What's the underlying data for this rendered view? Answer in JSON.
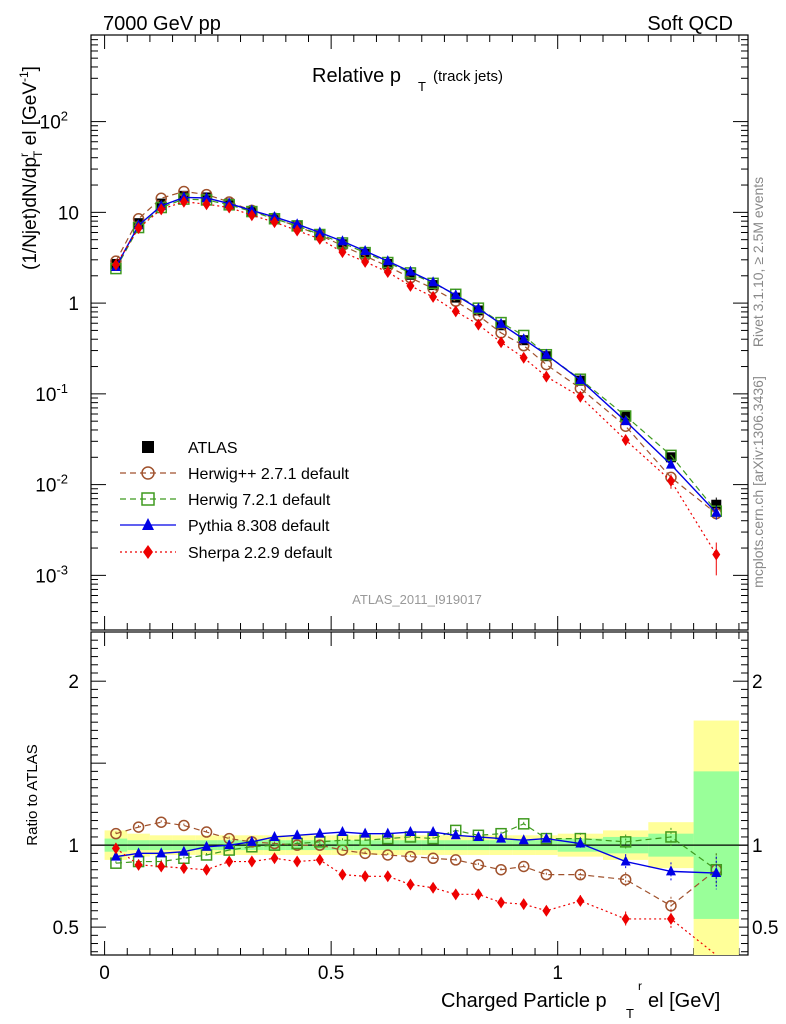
{
  "header": {
    "left": "7000 GeV pp",
    "right": "Soft QCD"
  },
  "side_labels": {
    "rivet": "Rivet 3.1.10, ≥ 2.5M events",
    "mcplots": "mcplots.cern.ch [arXiv:1306.3436]"
  },
  "chart_data": [
    {
      "type": "scatter",
      "panel": "main",
      "title": "Relative p_T (track jets)",
      "title_main": "Relative p",
      "title_sub": "T",
      "title_note": "(track jets)",
      "ylabel": "(1/Njet)dN/dp^r_T el [GeV^-1]",
      "xlabel": "Charged Particle p^r_T el [GeV]",
      "yscale": "log",
      "xlim": [
        -0.03,
        1.42
      ],
      "ylim": [
        0.00025,
        900
      ],
      "y_ticks": [
        "10^-3",
        "10^-2",
        "10^-1",
        "1",
        "10",
        "10^2"
      ],
      "analysis_label": "ATLAS_2011_I919017",
      "legend_position": "bottom-left",
      "colors": {
        "ATLAS": "#000000",
        "Herwig": "#a0522d",
        "Herwig7": "#3f9a1f",
        "Pythia": "#0000e6",
        "Sherpa": "#ee0000"
      },
      "x": [
        0.025,
        0.075,
        0.125,
        0.175,
        0.225,
        0.275,
        0.325,
        0.375,
        0.425,
        0.475,
        0.525,
        0.575,
        0.625,
        0.675,
        0.725,
        0.775,
        0.825,
        0.875,
        0.925,
        0.975,
        1.05,
        1.15,
        1.25,
        1.35
      ],
      "series": [
        {
          "name": "ATLAS",
          "marker": "square-filled",
          "values": [
            2.7,
            7.6,
            12.5,
            15.2,
            14.6,
            12.5,
            10.3,
            8.5,
            7.0,
            5.6,
            4.45,
            3.5,
            2.7,
            2.05,
            1.58,
            1.15,
            0.83,
            0.57,
            0.39,
            0.26,
            0.14,
            0.056,
            0.02,
            0.006
          ]
        },
        {
          "name": "Herwig++ 2.7.1 default",
          "marker": "circle-open",
          "line": "dashed",
          "values": [
            2.9,
            8.5,
            14.3,
            17.0,
            15.7,
            13.0,
            10.5,
            8.6,
            7.0,
            5.6,
            4.3,
            3.3,
            2.55,
            1.9,
            1.45,
            1.05,
            0.73,
            0.47,
            0.34,
            0.21,
            0.115,
            0.044,
            0.012,
            0.0048
          ]
        },
        {
          "name": "Herwig 7.2.1 default",
          "marker": "square-open",
          "line": "dashed",
          "values": [
            2.4,
            6.8,
            11.3,
            14.0,
            13.7,
            12.1,
            10.2,
            8.5,
            7.1,
            5.7,
            4.6,
            3.6,
            2.8,
            2.15,
            1.65,
            1.25,
            0.88,
            0.61,
            0.44,
            0.27,
            0.145,
            0.057,
            0.021,
            0.0051
          ]
        },
        {
          "name": "Pythia 8.308 default",
          "marker": "triangle-filled",
          "line": "solid",
          "values": [
            2.5,
            7.2,
            11.8,
            14.6,
            14.4,
            12.5,
            10.5,
            8.9,
            7.4,
            6.0,
            4.8,
            3.75,
            2.9,
            2.22,
            1.7,
            1.22,
            0.87,
            0.59,
            0.4,
            0.27,
            0.142,
            0.05,
            0.0166,
            0.0049
          ]
        },
        {
          "name": "Sherpa 2.2.9 default",
          "marker": "diamond-filled",
          "line": "dotted",
          "values": [
            2.65,
            6.7,
            10.8,
            13.1,
            12.3,
            11.3,
            9.3,
            7.8,
            6.3,
            5.1,
            3.65,
            2.85,
            2.2,
            1.55,
            1.17,
            0.81,
            0.58,
            0.37,
            0.25,
            0.155,
            0.093,
            0.031,
            0.011,
            0.0017
          ]
        }
      ]
    },
    {
      "type": "scatter",
      "panel": "ratio",
      "ylabel": "Ratio to ATLAS",
      "xlabel": "Charged Particle p^r_T el [GeV]",
      "xlabel_main": "Charged Particle p",
      "xlabel_sub": "T",
      "xlabel_tail": "el [GeV]",
      "xlim": [
        -0.03,
        1.42
      ],
      "ylim": [
        0.33,
        2.3
      ],
      "x_ticks": [
        "0",
        "0.5",
        "1"
      ],
      "y_ticks": [
        "0.5",
        "1",
        "2"
      ],
      "bin_edges": [
        0.0,
        0.05,
        0.1,
        0.15,
        0.2,
        0.25,
        0.3,
        0.35,
        0.4,
        0.45,
        0.5,
        0.55,
        0.6,
        0.65,
        0.7,
        0.75,
        0.8,
        0.85,
        0.9,
        0.95,
        1.0,
        1.1,
        1.2,
        1.3,
        1.4
      ],
      "band_stat": [
        0.04,
        0.03,
        0.03,
        0.03,
        0.03,
        0.03,
        0.03,
        0.03,
        0.03,
        0.03,
        0.03,
        0.03,
        0.03,
        0.03,
        0.03,
        0.03,
        0.03,
        0.03,
        0.03,
        0.03,
        0.04,
        0.05,
        0.07,
        0.45
      ],
      "band_total": [
        0.09,
        0.07,
        0.06,
        0.06,
        0.06,
        0.06,
        0.06,
        0.06,
        0.06,
        0.06,
        0.06,
        0.06,
        0.06,
        0.06,
        0.06,
        0.06,
        0.06,
        0.06,
        0.06,
        0.06,
        0.07,
        0.09,
        0.14,
        0.76
      ],
      "series": [
        {
          "name": "Herwig++ 2.7.1 default",
          "values": [
            1.07,
            1.11,
            1.14,
            1.12,
            1.08,
            1.04,
            1.02,
            1.01,
            1.0,
            1.0,
            0.97,
            0.95,
            0.94,
            0.93,
            0.92,
            0.91,
            0.88,
            0.85,
            0.87,
            0.82,
            0.82,
            0.79,
            0.63,
            0.85
          ]
        },
        {
          "name": "Herwig 7.2.1 default",
          "values": [
            0.89,
            0.9,
            0.9,
            0.92,
            0.94,
            0.97,
            0.99,
            1.0,
            1.01,
            1.02,
            1.03,
            1.03,
            1.04,
            1.05,
            1.04,
            1.09,
            1.06,
            1.07,
            1.13,
            1.04,
            1.04,
            1.02,
            1.05,
            0.85
          ]
        },
        {
          "name": "Pythia 8.308 default",
          "values": [
            0.93,
            0.95,
            0.95,
            0.96,
            0.99,
            1.0,
            1.02,
            1.05,
            1.06,
            1.07,
            1.08,
            1.07,
            1.07,
            1.08,
            1.08,
            1.06,
            1.05,
            1.04,
            1.03,
            1.04,
            1.01,
            0.9,
            0.84,
            0.83
          ]
        },
        {
          "name": "Sherpa 2.2.9 default",
          "values": [
            0.98,
            0.88,
            0.87,
            0.86,
            0.85,
            0.9,
            0.9,
            0.92,
            0.9,
            0.91,
            0.82,
            0.81,
            0.81,
            0.76,
            0.74,
            0.7,
            0.7,
            0.65,
            0.64,
            0.6,
            0.66,
            0.55,
            0.55,
            0.28
          ]
        }
      ]
    }
  ]
}
